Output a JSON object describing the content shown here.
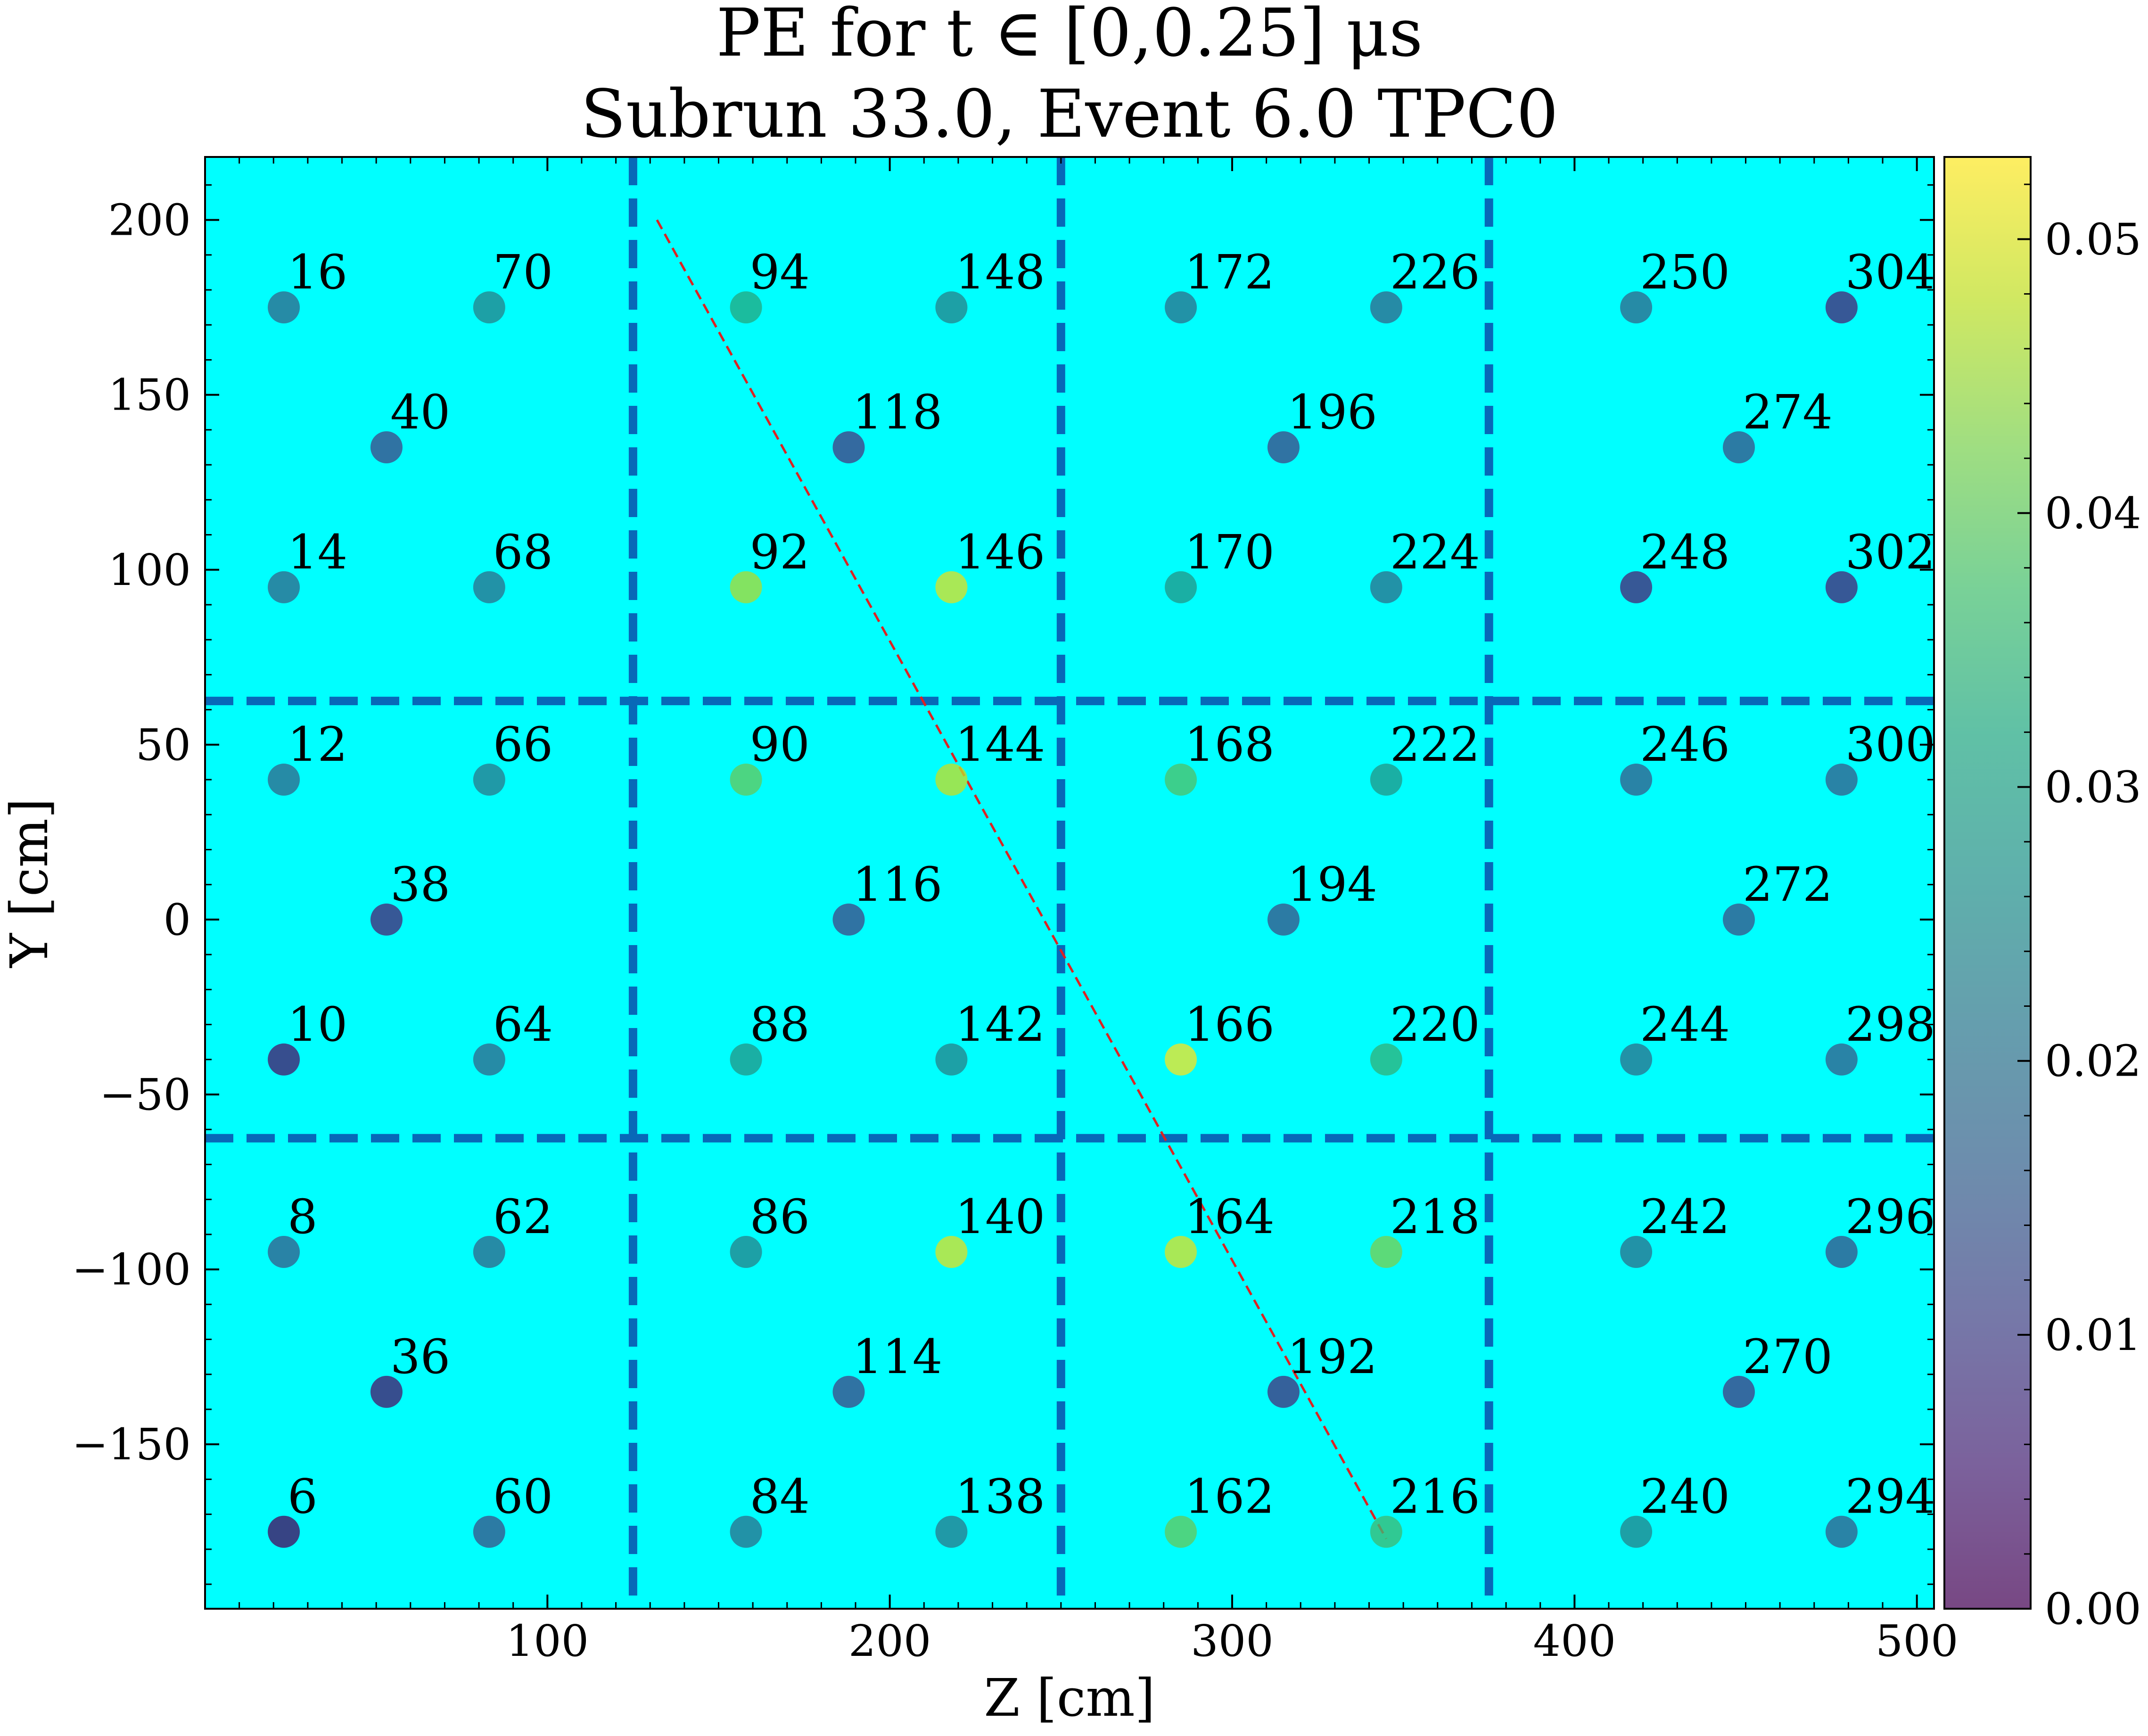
{
  "title_line1": "PE for t ∈ [0,0.25] μs",
  "title_line2": "Subrun 33.0, Event 6.0 TPC0",
  "chart_data": {
    "type": "scatter",
    "xlabel": "Z [cm]",
    "ylabel": "Y [cm]",
    "xlim": [
      0,
      505
    ],
    "ylim": [
      -197,
      218
    ],
    "xticks": [
      100,
      200,
      300,
      400,
      500
    ],
    "xtick_labels": [
      "100",
      "200",
      "300",
      "400",
      "500"
    ],
    "yticks": [
      -150,
      -100,
      -50,
      0,
      50,
      100,
      150,
      200
    ],
    "ytick_labels": [
      "−150",
      "−100",
      "−50",
      "0",
      "50",
      "100",
      "150",
      "200"
    ],
    "colorbar": {
      "range": [
        0.0,
        0.053
      ],
      "ticks": [
        0.0,
        0.01,
        0.02,
        0.03,
        0.04,
        0.05
      ],
      "tick_labels": [
        "0.00",
        "0.01",
        "0.02",
        "0.03",
        "0.04",
        "0.05"
      ],
      "colormap": "viridis"
    },
    "background_color": "#00ffff",
    "divider_color": "#0868b8",
    "track_color": "#dd2222",
    "region_lines": {
      "vertical_z": [
        125,
        250,
        375
      ],
      "horizontal_y": [
        62.5,
        -62.5
      ]
    },
    "track": {
      "z": [
        132,
        345
      ],
      "y": [
        200,
        -177
      ]
    },
    "points": [
      {
        "label": "16",
        "z": 23,
        "y": 175,
        "pe": 0.018
      },
      {
        "label": "70",
        "z": 83,
        "y": 175,
        "pe": 0.024
      },
      {
        "label": "94",
        "z": 158,
        "y": 175,
        "pe": 0.032
      },
      {
        "label": "148",
        "z": 218,
        "y": 175,
        "pe": 0.024
      },
      {
        "label": "172",
        "z": 285,
        "y": 175,
        "pe": 0.02
      },
      {
        "label": "226",
        "z": 345,
        "y": 175,
        "pe": 0.018
      },
      {
        "label": "250",
        "z": 418,
        "y": 175,
        "pe": 0.018
      },
      {
        "label": "304",
        "z": 478,
        "y": 175,
        "pe": 0.006
      },
      {
        "label": "40",
        "z": 53,
        "y": 135,
        "pe": 0.012
      },
      {
        "label": "118",
        "z": 188,
        "y": 135,
        "pe": 0.01
      },
      {
        "label": "196",
        "z": 315,
        "y": 135,
        "pe": 0.012
      },
      {
        "label": "274",
        "z": 448,
        "y": 135,
        "pe": 0.014
      },
      {
        "label": "14",
        "z": 23,
        "y": 95,
        "pe": 0.018
      },
      {
        "label": "68",
        "z": 83,
        "y": 95,
        "pe": 0.02
      },
      {
        "label": "92",
        "z": 158,
        "y": 95,
        "pe": 0.046
      },
      {
        "label": "146",
        "z": 218,
        "y": 95,
        "pe": 0.05
      },
      {
        "label": "170",
        "z": 285,
        "y": 95,
        "pe": 0.028
      },
      {
        "label": "224",
        "z": 345,
        "y": 95,
        "pe": 0.02
      },
      {
        "label": "248",
        "z": 418,
        "y": 95,
        "pe": 0.006
      },
      {
        "label": "302",
        "z": 478,
        "y": 95,
        "pe": 0.006
      },
      {
        "label": "12",
        "z": 23,
        "y": 40,
        "pe": 0.018
      },
      {
        "label": "66",
        "z": 83,
        "y": 40,
        "pe": 0.022
      },
      {
        "label": "90",
        "z": 158,
        "y": 40,
        "pe": 0.04
      },
      {
        "label": "144",
        "z": 218,
        "y": 40,
        "pe": 0.048
      },
      {
        "label": "168",
        "z": 285,
        "y": 40,
        "pe": 0.038
      },
      {
        "label": "222",
        "z": 345,
        "y": 40,
        "pe": 0.028
      },
      {
        "label": "246",
        "z": 418,
        "y": 40,
        "pe": 0.016
      },
      {
        "label": "300",
        "z": 478,
        "y": 40,
        "pe": 0.016
      },
      {
        "label": "38",
        "z": 53,
        "y": 0,
        "pe": 0.006
      },
      {
        "label": "116",
        "z": 188,
        "y": 0,
        "pe": 0.012
      },
      {
        "label": "194",
        "z": 315,
        "y": 0,
        "pe": 0.014
      },
      {
        "label": "272",
        "z": 448,
        "y": 0,
        "pe": 0.014
      },
      {
        "label": "10",
        "z": 23,
        "y": -40,
        "pe": 0.004
      },
      {
        "label": "64",
        "z": 83,
        "y": -40,
        "pe": 0.018
      },
      {
        "label": "88",
        "z": 158,
        "y": -40,
        "pe": 0.028
      },
      {
        "label": "142",
        "z": 218,
        "y": -40,
        "pe": 0.024
      },
      {
        "label": "166",
        "z": 285,
        "y": -40,
        "pe": 0.052
      },
      {
        "label": "220",
        "z": 345,
        "y": -40,
        "pe": 0.034
      },
      {
        "label": "244",
        "z": 418,
        "y": -40,
        "pe": 0.02
      },
      {
        "label": "298",
        "z": 478,
        "y": -40,
        "pe": 0.016
      },
      {
        "label": "8",
        "z": 23,
        "y": -95,
        "pe": 0.016
      },
      {
        "label": "62",
        "z": 83,
        "y": -95,
        "pe": 0.018
      },
      {
        "label": "86",
        "z": 158,
        "y": -95,
        "pe": 0.024
      },
      {
        "label": "140",
        "z": 218,
        "y": -95,
        "pe": 0.05
      },
      {
        "label": "164",
        "z": 285,
        "y": -95,
        "pe": 0.05
      },
      {
        "label": "218",
        "z": 345,
        "y": -95,
        "pe": 0.042
      },
      {
        "label": "242",
        "z": 418,
        "y": -95,
        "pe": 0.02
      },
      {
        "label": "296",
        "z": 478,
        "y": -95,
        "pe": 0.014
      },
      {
        "label": "36",
        "z": 53,
        "y": -135,
        "pe": 0.004
      },
      {
        "label": "114",
        "z": 188,
        "y": -135,
        "pe": 0.012
      },
      {
        "label": "192",
        "z": 315,
        "y": -135,
        "pe": 0.008
      },
      {
        "label": "270",
        "z": 448,
        "y": -135,
        "pe": 0.01
      },
      {
        "label": "6",
        "z": 23,
        "y": -175,
        "pe": 0.002
      },
      {
        "label": "60",
        "z": 83,
        "y": -175,
        "pe": 0.014
      },
      {
        "label": "84",
        "z": 158,
        "y": -175,
        "pe": 0.02
      },
      {
        "label": "138",
        "z": 218,
        "y": -175,
        "pe": 0.022
      },
      {
        "label": "162",
        "z": 285,
        "y": -175,
        "pe": 0.04
      },
      {
        "label": "216",
        "z": 345,
        "y": -175,
        "pe": 0.036
      },
      {
        "label": "240",
        "z": 418,
        "y": -175,
        "pe": 0.024
      },
      {
        "label": "294",
        "z": 478,
        "y": -175,
        "pe": 0.016
      }
    ]
  }
}
